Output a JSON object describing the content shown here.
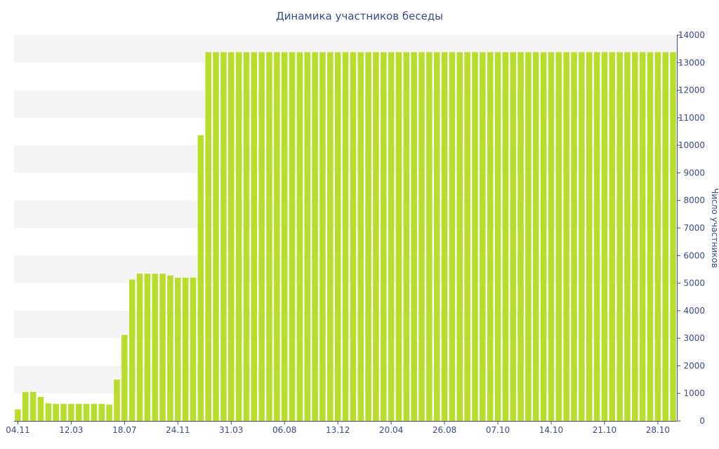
{
  "chart_data": {
    "type": "bar",
    "title": "Динамика участников беседы",
    "xlabel": "",
    "ylabel": "Число участников",
    "y_axis_side": "right",
    "ylim": [
      0,
      14000
    ],
    "y_ticks": [
      0,
      1000,
      2000,
      3000,
      4000,
      5000,
      6000,
      7000,
      8000,
      9000,
      10000,
      11000,
      12000,
      13000,
      14000
    ],
    "x_tick_labels": [
      {
        "index": 0,
        "label": "04.11"
      },
      {
        "index": 7,
        "label": "12.03"
      },
      {
        "index": 14,
        "label": "18.07"
      },
      {
        "index": 21,
        "label": "24.11"
      },
      {
        "index": 28,
        "label": "31.03"
      },
      {
        "index": 35,
        "label": "06.08"
      },
      {
        "index": 42,
        "label": "13.12"
      },
      {
        "index": 49,
        "label": "20.04"
      },
      {
        "index": 56,
        "label": "26.08"
      },
      {
        "index": 63,
        "label": "07.10"
      },
      {
        "index": 70,
        "label": "14.10"
      },
      {
        "index": 77,
        "label": "21.10"
      },
      {
        "index": 84,
        "label": "28.10"
      }
    ],
    "values": [
      420,
      1050,
      1050,
      870,
      640,
      620,
      620,
      620,
      620,
      620,
      620,
      620,
      590,
      1500,
      3120,
      5130,
      5340,
      5340,
      5340,
      5340,
      5280,
      5200,
      5200,
      5200,
      10370,
      13380,
      13380,
      13380,
      13380,
      13380,
      13380,
      13380,
      13380,
      13380,
      13380,
      13380,
      13380,
      13380,
      13380,
      13380,
      13380,
      13380,
      13380,
      13380,
      13380,
      13380,
      13380,
      13380,
      13380,
      13380,
      13380,
      13380,
      13380,
      13380,
      13380,
      13380,
      13380,
      13380,
      13380,
      13380,
      13380,
      13380,
      13380,
      13380,
      13380,
      13380,
      13380,
      13380,
      13380,
      13380,
      13380,
      13380,
      13380,
      13380,
      13380,
      13380,
      13380,
      13380,
      13380,
      13380,
      13380,
      13380,
      13380,
      13380,
      13380,
      13380,
      13380
    ],
    "grid": "alternating horizontal bands",
    "legend": "none",
    "colors": {
      "bar": "#b8dd2a",
      "band": "#f5f5f5",
      "text": "#3a4b8c",
      "axis": "#3a4b8c"
    }
  }
}
